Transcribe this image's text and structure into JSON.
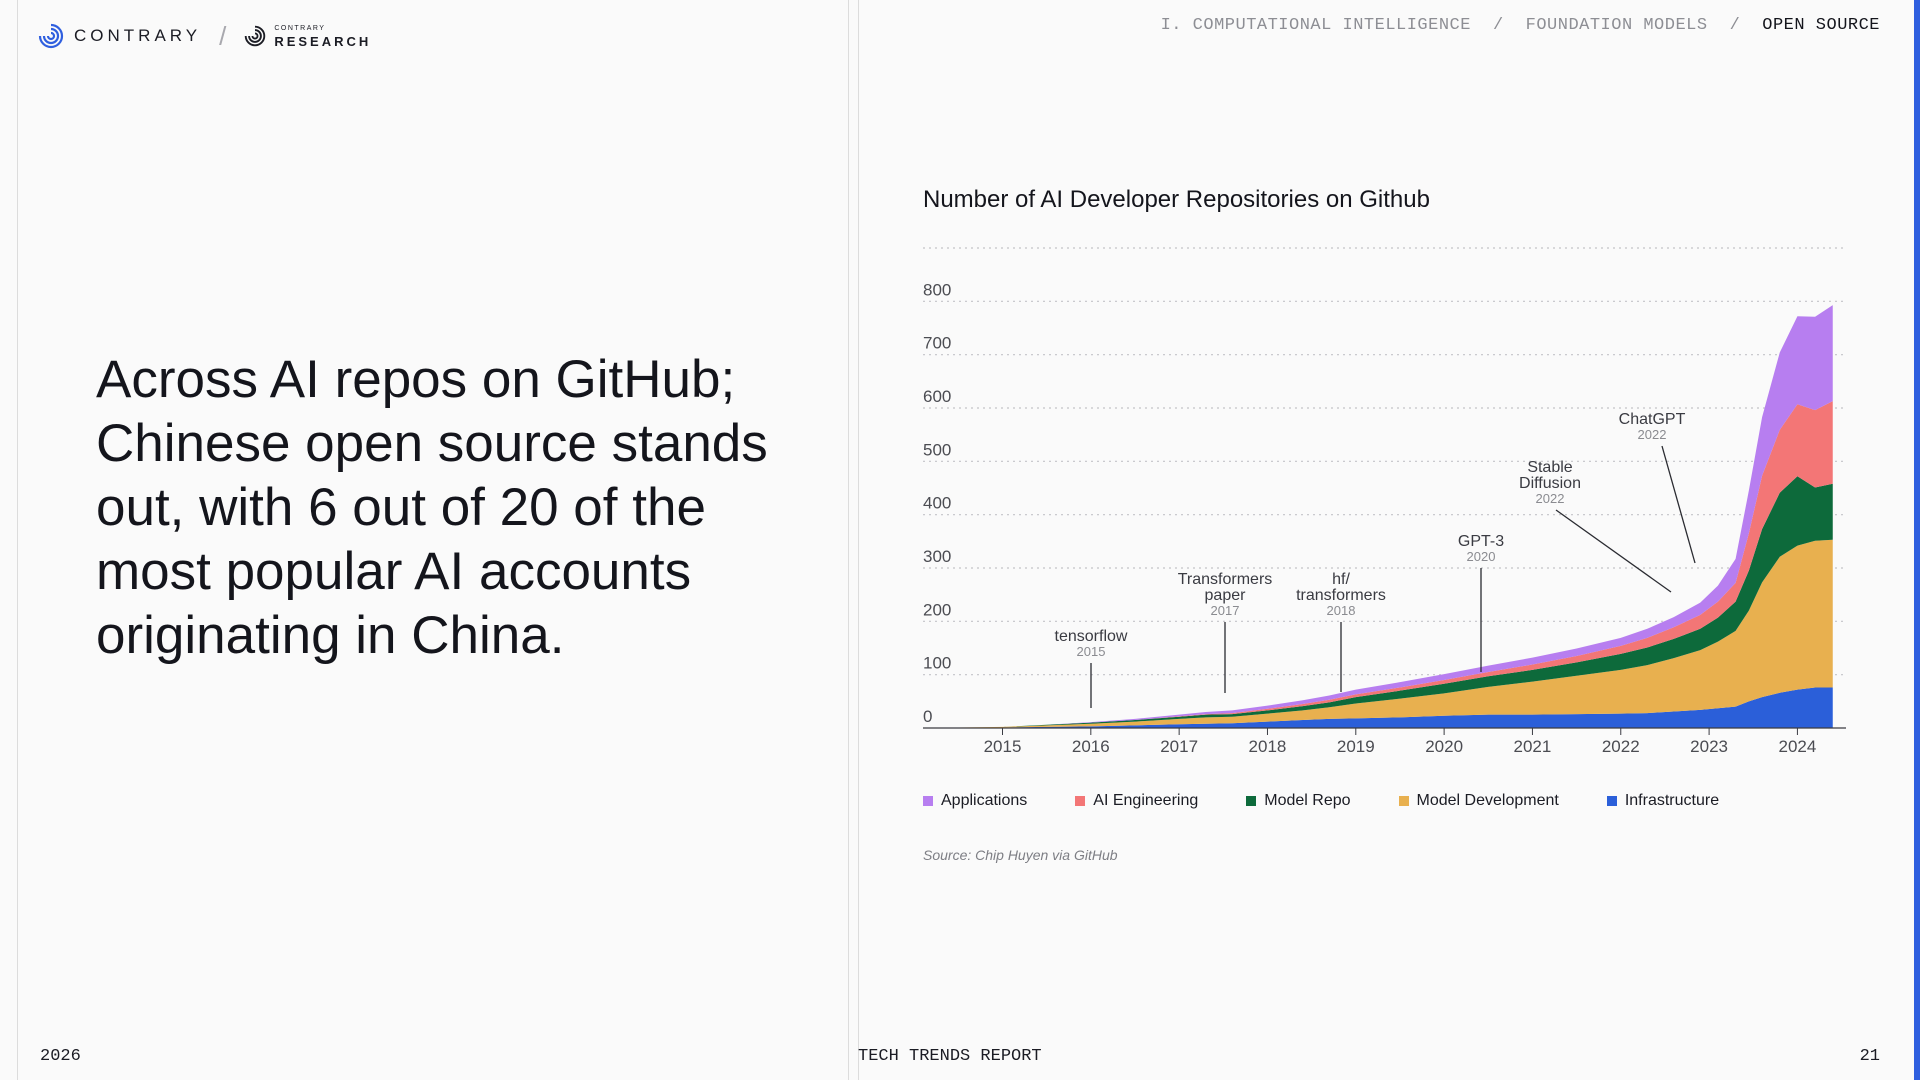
{
  "header": {
    "brand": "CONTRARY",
    "research_small": "CONTRARY",
    "research_big": "RESEARCH",
    "breadcrumb": [
      "I. COMPUTATIONAL INTELLIGENCE",
      "FOUNDATION MODELS",
      "OPEN SOURCE"
    ],
    "separator": "/"
  },
  "headline": "Across AI repos on GitHub; Chinese open source stands out, with 6 out of 20 of the most popular AI accounts originating in China.",
  "chart_data": {
    "type": "area",
    "stacked": true,
    "title": "Number of AI Developer Repositories on Github",
    "xlabel": "",
    "ylabel": "",
    "xlim": [
      2014.1,
      2024.55
    ],
    "ylim": [
      0,
      900
    ],
    "y_ticks": [
      0,
      100,
      200,
      300,
      400,
      500,
      600,
      700,
      800
    ],
    "x_ticks": [
      2015,
      2016,
      2017,
      2018,
      2019,
      2020,
      2021,
      2022,
      2023,
      2024
    ],
    "grid": "horizontal dotted",
    "legend_position": "bottom",
    "x": [
      2014.1,
      2015.0,
      2015.5,
      2016.0,
      2016.5,
      2017.0,
      2017.3,
      2017.6,
      2018.0,
      2018.4,
      2018.7,
      2019.0,
      2019.5,
      2020.0,
      2020.5,
      2021.0,
      2021.5,
      2022.0,
      2022.3,
      2022.6,
      2022.9,
      2023.1,
      2023.3,
      2023.45,
      2023.6,
      2023.8,
      2024.0,
      2024.2,
      2024.4
    ],
    "series": [
      {
        "name": "Infrastructure",
        "color": "#2b5fd9",
        "values": [
          0,
          1,
          2,
          3,
          5,
          7,
          8,
          9,
          12,
          15,
          17,
          18,
          20,
          23,
          25,
          25,
          26,
          27,
          28,
          31,
          34,
          37,
          40,
          50,
          58,
          66,
          72,
          76,
          76
        ]
      },
      {
        "name": "Model Development",
        "color": "#e8b04f",
        "values": [
          0,
          1,
          3,
          5,
          7,
          10,
          12,
          12,
          15,
          18,
          22,
          28,
          35,
          42,
          52,
          62,
          72,
          82,
          90,
          100,
          112,
          125,
          142,
          170,
          215,
          255,
          270,
          275,
          277
        ]
      },
      {
        "name": "Model Repo",
        "color": "#0d6a3b",
        "values": [
          0,
          0,
          1,
          2,
          3,
          4,
          5,
          5,
          6,
          8,
          9,
          12,
          15,
          18,
          20,
          22,
          25,
          30,
          33,
          36,
          40,
          45,
          55,
          75,
          100,
          120,
          130,
          100,
          105
        ]
      },
      {
        "name": "AI Engineering",
        "color": "#f37676",
        "values": [
          0,
          0,
          0,
          0,
          0,
          1,
          1,
          2,
          3,
          4,
          5,
          5,
          6,
          7,
          8,
          10,
          12,
          15,
          18,
          22,
          26,
          30,
          35,
          70,
          100,
          118,
          135,
          145,
          155
        ]
      },
      {
        "name": "Applications",
        "color": "#b77ef0",
        "values": [
          0,
          0,
          0,
          1,
          2,
          3,
          4,
          5,
          6,
          7,
          8,
          9,
          10,
          11,
          12,
          13,
          14,
          15,
          17,
          19,
          23,
          30,
          45,
          80,
          110,
          145,
          165,
          175,
          180
        ]
      }
    ],
    "legend_order": [
      "Applications",
      "AI Engineering",
      "Model Repo",
      "Model Development",
      "Infrastructure"
    ],
    "annotations": [
      {
        "label": [
          "tensorflow"
        ],
        "year": "2015",
        "x": 2016.0,
        "y": 30
      },
      {
        "label": [
          "Transformers",
          "paper"
        ],
        "year": "2017",
        "x": 2017.5,
        "y": 60
      },
      {
        "label": [
          "hf/",
          "transformers"
        ],
        "year": "2018",
        "x": 2018.8,
        "y": 60
      },
      {
        "label": [
          "GPT-3"
        ],
        "year": "2020",
        "x": 2020.4,
        "y": 100
      },
      {
        "label": [
          "Stable",
          "Diffusion"
        ],
        "year": "2022",
        "x": 2022.55,
        "y": 255
      },
      {
        "label": [
          "ChatGPT"
        ],
        "year": "2022",
        "x": 2022.85,
        "y": 310
      }
    ],
    "source": "Source: Chip Huyen via GitHub"
  },
  "footer": {
    "year": "2026",
    "report": "TECH TRENDS REPORT",
    "page": "21"
  },
  "colors": {
    "accent": "#2f5fdf",
    "text": "#14151c",
    "muted": "#8d8e94"
  }
}
